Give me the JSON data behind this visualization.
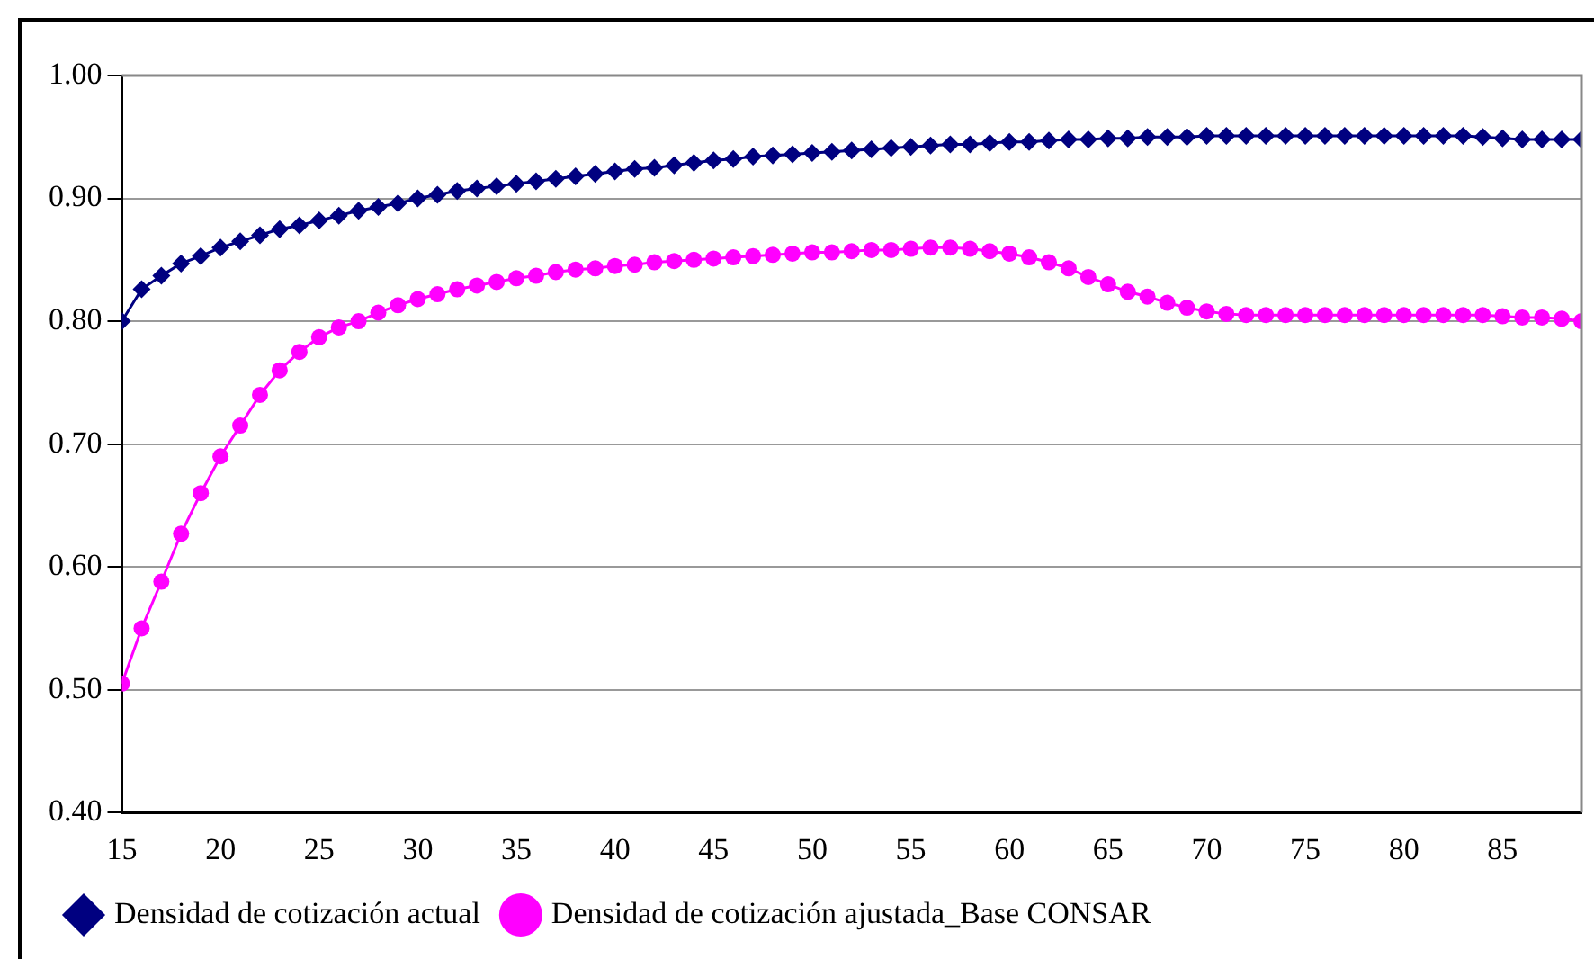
{
  "chart_data": {
    "type": "line",
    "x": [
      15,
      16,
      17,
      18,
      19,
      20,
      21,
      22,
      23,
      24,
      25,
      26,
      27,
      28,
      29,
      30,
      31,
      32,
      33,
      34,
      35,
      36,
      37,
      38,
      39,
      40,
      41,
      42,
      43,
      44,
      45,
      46,
      47,
      48,
      49,
      50,
      51,
      52,
      53,
      54,
      55,
      56,
      57,
      58,
      59,
      60,
      61,
      62,
      63,
      64,
      65,
      66,
      67,
      68,
      69,
      70,
      71,
      72,
      73,
      74,
      75,
      76,
      77,
      78,
      79,
      80,
      81,
      82,
      83,
      84,
      85,
      86,
      87,
      88,
      89
    ],
    "series": [
      {
        "name": "Densidad de cotización actual",
        "color": "#000080",
        "marker": "diamond",
        "values": [
          0.8,
          0.826,
          0.837,
          0.847,
          0.853,
          0.86,
          0.865,
          0.87,
          0.875,
          0.878,
          0.882,
          0.886,
          0.89,
          0.893,
          0.896,
          0.9,
          0.903,
          0.906,
          0.908,
          0.91,
          0.912,
          0.914,
          0.916,
          0.918,
          0.92,
          0.922,
          0.924,
          0.925,
          0.927,
          0.929,
          0.931,
          0.932,
          0.934,
          0.935,
          0.936,
          0.937,
          0.938,
          0.939,
          0.94,
          0.941,
          0.942,
          0.943,
          0.944,
          0.944,
          0.945,
          0.946,
          0.946,
          0.947,
          0.948,
          0.948,
          0.949,
          0.949,
          0.95,
          0.95,
          0.95,
          0.951,
          0.951,
          0.951,
          0.951,
          0.951,
          0.951,
          0.951,
          0.951,
          0.951,
          0.951,
          0.951,
          0.951,
          0.951,
          0.951,
          0.95,
          0.949,
          0.948,
          0.948,
          0.948,
          0.948
        ]
      },
      {
        "name": "Densidad de cotización ajustada_Base CONSAR",
        "color": "#ff00ff",
        "marker": "circle",
        "values": [
          0.505,
          0.55,
          0.588,
          0.627,
          0.66,
          0.69,
          0.715,
          0.74,
          0.76,
          0.775,
          0.787,
          0.795,
          0.8,
          0.807,
          0.813,
          0.818,
          0.822,
          0.826,
          0.829,
          0.832,
          0.835,
          0.837,
          0.84,
          0.842,
          0.843,
          0.845,
          0.846,
          0.848,
          0.849,
          0.85,
          0.851,
          0.852,
          0.853,
          0.854,
          0.855,
          0.856,
          0.856,
          0.857,
          0.858,
          0.858,
          0.859,
          0.86,
          0.86,
          0.859,
          0.857,
          0.855,
          0.852,
          0.848,
          0.843,
          0.836,
          0.83,
          0.824,
          0.82,
          0.815,
          0.811,
          0.808,
          0.806,
          0.805,
          0.805,
          0.805,
          0.805,
          0.805,
          0.805,
          0.805,
          0.805,
          0.805,
          0.805,
          0.805,
          0.805,
          0.805,
          0.804,
          0.803,
          0.803,
          0.802,
          0.8
        ]
      }
    ],
    "xlim": [
      15,
      89
    ],
    "xticks": [
      15,
      20,
      25,
      30,
      35,
      40,
      45,
      50,
      55,
      60,
      65,
      70,
      75,
      80,
      85
    ],
    "ylim": [
      0.4,
      1.0
    ],
    "yticks": [
      {
        "value": 0.4,
        "label": "0.40"
      },
      {
        "value": 0.5,
        "label": "0.50"
      },
      {
        "value": 0.6,
        "label": "0.60"
      },
      {
        "value": 0.7,
        "label": "0.70"
      },
      {
        "value": 0.8,
        "label": "0.80"
      },
      {
        "value": 0.9,
        "label": "0.90"
      },
      {
        "value": 1.0,
        "label": "1.00"
      }
    ],
    "grid": "y",
    "legend": "bottom",
    "line_style": "solid"
  }
}
